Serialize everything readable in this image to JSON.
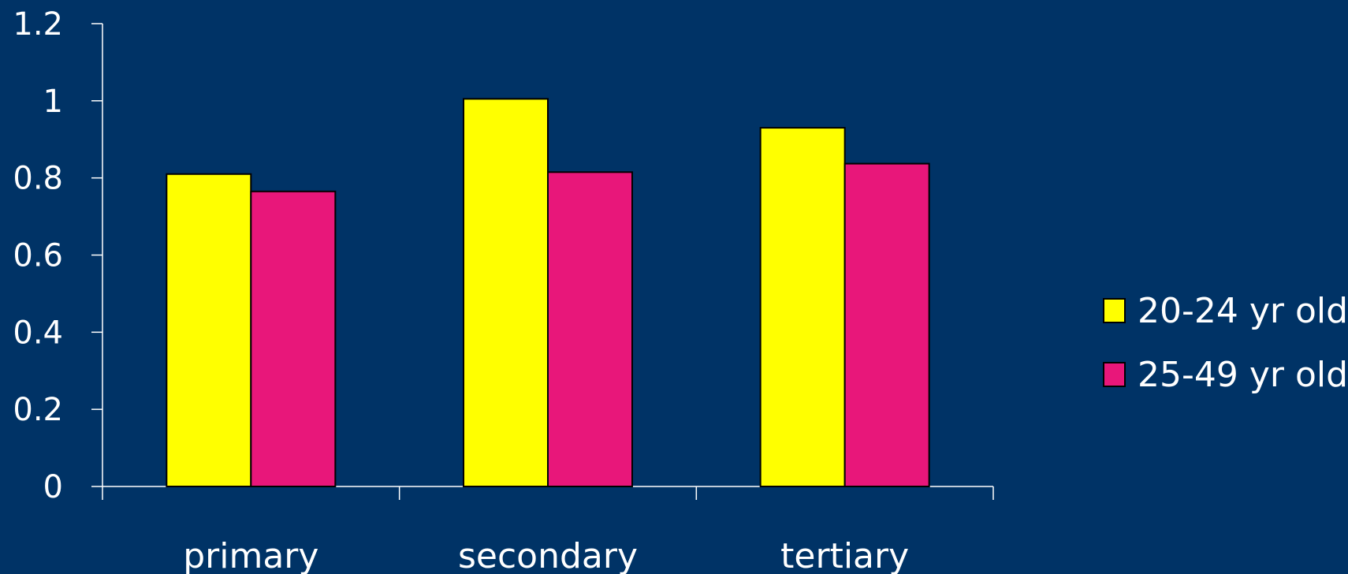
{
  "chart_data": {
    "type": "bar",
    "title": "",
    "xlabel": "",
    "ylabel": "",
    "categories": [
      "primary",
      "secondary",
      "tertiary"
    ],
    "series": [
      {
        "name": "20-24 yr old",
        "color": "#ffff00",
        "values": [
          0.81,
          1.005,
          0.93
        ]
      },
      {
        "name": "25-49 yr old",
        "color": "#e8177a",
        "values": [
          0.765,
          0.815,
          0.837
        ]
      }
    ],
    "ylim": [
      0,
      1.2
    ],
    "yticks": [
      "0",
      "0.2",
      "0.4",
      "0.6",
      "0.8",
      "1",
      "1.2"
    ],
    "grid": false,
    "legend_position": "right",
    "colors": {
      "background": "#003366",
      "axis": "#ffffff",
      "text": "#ffffff",
      "bar_border": "#000000"
    }
  }
}
